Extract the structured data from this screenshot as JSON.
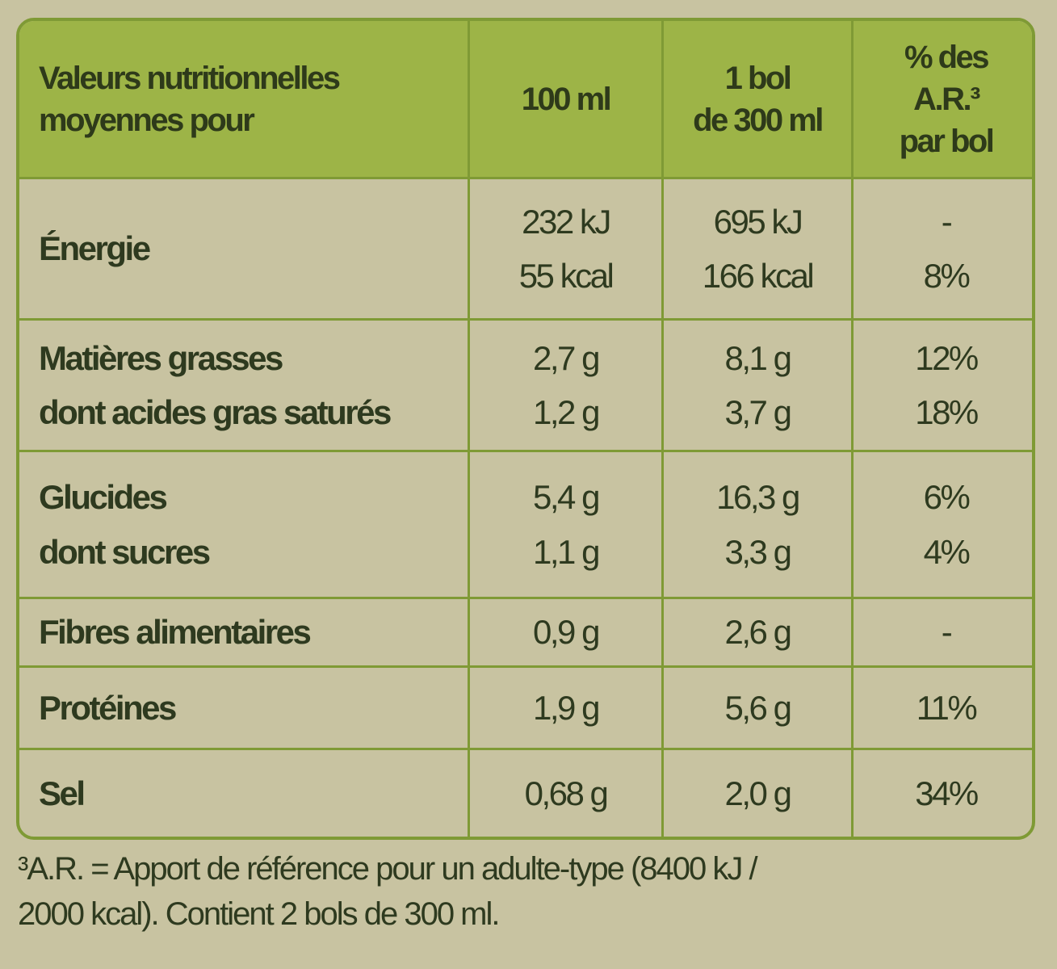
{
  "header": {
    "col0": [
      "Valeurs nutritionnelles",
      "moyennes pour"
    ],
    "col1": [
      "100 ml"
    ],
    "col2": [
      "1 bol",
      "de 300 ml"
    ],
    "col3": [
      "% des",
      "A.R.³",
      "par bol"
    ]
  },
  "rows": [
    {
      "labels": [
        "Énergie"
      ],
      "per100": [
        "232 kJ",
        "55 kcal"
      ],
      "perBowl": [
        "695 kJ",
        "166 kcal"
      ],
      "ar": [
        "-",
        "8%"
      ]
    },
    {
      "labels": [
        "Matières grasses",
        "dont acides gras saturés"
      ],
      "per100": [
        "2,7 g",
        "1,2 g"
      ],
      "perBowl": [
        "8,1 g",
        "3,7 g"
      ],
      "ar": [
        "12%",
        "18%"
      ]
    },
    {
      "labels": [
        "Glucides",
        "dont sucres"
      ],
      "per100": [
        "5,4 g",
        "1,1 g"
      ],
      "perBowl": [
        "16,3 g",
        "3,3 g"
      ],
      "ar": [
        "6%",
        "4%"
      ]
    },
    {
      "labels": [
        "Fibres alimentaires"
      ],
      "per100": [
        "0,9 g"
      ],
      "perBowl": [
        "2,6 g"
      ],
      "ar": [
        "-"
      ]
    },
    {
      "labels": [
        "Protéines"
      ],
      "per100": [
        "1,9 g"
      ],
      "perBowl": [
        "5,6 g"
      ],
      "ar": [
        "11%"
      ]
    },
    {
      "labels": [
        "Sel"
      ],
      "per100": [
        "0,68 g"
      ],
      "perBowl": [
        "2,0 g"
      ],
      "ar": [
        "34%"
      ]
    }
  ],
  "footnote": [
    "³A.R. = Apport de référence pour un adulte-type (8400 kJ /",
    "2000 kcal). Contient 2 bols de 300 ml."
  ],
  "colors": {
    "border": "#7f9a35",
    "header": "#9db447",
    "background": "#c8c3a1",
    "text": "#2e3a1f"
  }
}
